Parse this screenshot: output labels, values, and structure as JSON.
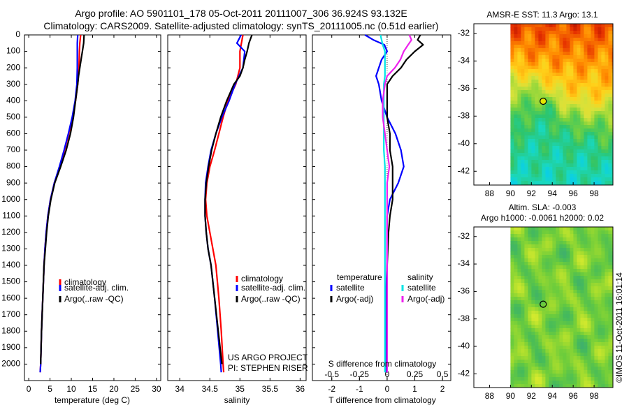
{
  "header": {
    "line1": "Argo profile: AO 5901101_178 05-Oct-2011 20111007_306 36.924S 93.132E",
    "line2": "Climatology: CARS2009. Satellite-adjusted climatology: synTS_20111005.nc (0.51d earlier)"
  },
  "colors": {
    "climatology": "#ff0000",
    "satellite": "#0000ff",
    "argo": "#000000",
    "salinity_satellite": "#00e5e5",
    "salinity_argo": "#ee22ee"
  },
  "chart_data": [
    {
      "id": "temperature",
      "type": "line",
      "xlabel": "temperature (deg C)",
      "ylabel": "",
      "xlim": [
        -1,
        31
      ],
      "ylim": [
        2100,
        0
      ],
      "x_ticks": [
        "0",
        "5",
        "10",
        "15",
        "20",
        "25",
        "30"
      ],
      "y_ticks": [
        "0",
        "100",
        "200",
        "300",
        "400",
        "500",
        "600",
        "700",
        "800",
        "900",
        "1000",
        "1100",
        "1200",
        "1300",
        "1400",
        "1500",
        "1600",
        "1700",
        "1800",
        "1900",
        "2000"
      ],
      "legend": [
        "climatology",
        "satellite-adj. clim.",
        "Argo(..raw -QC)"
      ],
      "series": [
        {
          "name": "climatology",
          "depth": [
            0,
            50,
            100,
            200,
            300,
            400,
            500,
            600,
            700,
            800,
            900,
            1000,
            1100,
            1200,
            1300,
            1400,
            1600,
            1800,
            2000,
            2050
          ],
          "values": [
            12.2,
            12.0,
            11.9,
            11.8,
            11.5,
            11.0,
            10.3,
            9.4,
            8.4,
            7.3,
            6.0,
            5.1,
            4.5,
            4.1,
            3.8,
            3.6,
            3.3,
            3.0,
            2.8,
            2.7
          ]
        },
        {
          "name": "satellite-adj. clim.",
          "depth": [
            0,
            50,
            100,
            200,
            300,
            400,
            500,
            600,
            700,
            800,
            900,
            1000,
            1100,
            1200,
            1300,
            1400,
            1600,
            1800,
            2000,
            2050
          ],
          "values": [
            11.5,
            11.4,
            11.4,
            11.4,
            11.3,
            10.9,
            10.2,
            9.3,
            8.3,
            7.2,
            6.0,
            5.1,
            4.5,
            4.1,
            3.8,
            3.6,
            3.3,
            3.0,
            2.8,
            2.7
          ]
        },
        {
          "name": "Argo(..raw -QC)",
          "depth": [
            0,
            50,
            100,
            150,
            200,
            250,
            300,
            400,
            500,
            600,
            700,
            800,
            900,
            1000,
            1100,
            1200,
            1300,
            1400,
            1600,
            1800,
            2000
          ],
          "values": [
            13.0,
            12.9,
            12.6,
            12.3,
            12.0,
            11.7,
            11.5,
            11.0,
            10.5,
            9.8,
            8.8,
            7.5,
            6.1,
            5.2,
            4.6,
            4.2,
            3.9,
            3.6,
            3.3,
            3.0,
            2.8
          ]
        }
      ]
    },
    {
      "id": "salinity",
      "type": "line",
      "xlabel": "salinity",
      "ylabel": "",
      "xlim": [
        33.8,
        36.1
      ],
      "ylim": [
        2100,
        0
      ],
      "x_ticks": [
        "34",
        "34.5",
        "35",
        "35.5",
        "36"
      ],
      "legend": [
        "climatology",
        "satellite-adj. clim.",
        "Argo(..raw -QC)"
      ],
      "annotations": [
        "US ARGO PROJECT",
        "PI: STEPHEN RISER"
      ],
      "series": [
        {
          "name": "climatology",
          "depth": [
            0,
            100,
            200,
            300,
            400,
            500,
            600,
            700,
            800,
            900,
            1000,
            1100,
            1200,
            1300,
            1400,
            1600,
            1800,
            2000,
            2050
          ],
          "values": [
            35.05,
            35.0,
            35.0,
            34.93,
            34.8,
            34.72,
            34.65,
            34.58,
            34.5,
            34.45,
            34.43,
            34.45,
            34.5,
            34.55,
            34.6,
            34.65,
            34.69,
            34.72,
            34.73
          ]
        },
        {
          "name": "satellite-adj. clim.",
          "depth": [
            0,
            50,
            100,
            200,
            300,
            400,
            500,
            600,
            700,
            800,
            900,
            1000,
            1100,
            1200,
            1300,
            1400,
            1600,
            1800,
            2000,
            2050
          ],
          "values": [
            35.02,
            34.95,
            35.08,
            35.05,
            34.92,
            34.82,
            34.7,
            34.6,
            34.52,
            34.47,
            34.43,
            34.42,
            34.42,
            34.44,
            34.47,
            34.52,
            34.58,
            34.63,
            34.68,
            34.69
          ]
        },
        {
          "name": "Argo(..raw -QC)",
          "depth": [
            0,
            50,
            100,
            150,
            200,
            250,
            300,
            400,
            500,
            600,
            700,
            800,
            900,
            1000,
            1100,
            1200,
            1300,
            1400,
            1600,
            1800,
            2000
          ],
          "values": [
            35.2,
            35.15,
            35.12,
            35.08,
            35.05,
            35.0,
            34.9,
            34.78,
            34.68,
            34.6,
            34.53,
            34.48,
            34.44,
            34.42,
            34.42,
            34.44,
            34.47,
            34.52,
            34.58,
            34.64,
            34.7
          ]
        }
      ]
    },
    {
      "id": "difference",
      "type": "line",
      "xlabel": "T difference from climatology",
      "xlabel_top": "S difference from climatology",
      "xlim": [
        -2.7,
        2.3
      ],
      "ylim": [
        2100,
        0
      ],
      "x_ticks": [
        "-2",
        "-1",
        "0",
        "1",
        "2"
      ],
      "x_ticks_top": [
        "-0.5",
        "-0.25",
        "0",
        "0.25",
        "0.5"
      ],
      "legend_title_left": "temperature",
      "legend_title_right": "salinity",
      "legend": [
        "satellite",
        "Argo(-adj)",
        "satellite",
        "Argo(-adj)"
      ],
      "series": [
        {
          "name": "T satellite",
          "depth": [
            0,
            30,
            60,
            100,
            150,
            200,
            250,
            300,
            400,
            500,
            600,
            700,
            800,
            900,
            1000,
            1100,
            1200,
            1400,
            1600,
            1800,
            2000,
            2050
          ],
          "values": [
            -0.8,
            -0.5,
            -0.1,
            0.0,
            -0.2,
            -0.3,
            -0.4,
            -0.3,
            -0.2,
            0.0,
            0.3,
            0.5,
            0.6,
            0.4,
            0.1,
            0.0,
            0.0,
            0.0,
            -0.05,
            -0.05,
            -0.05,
            -0.05
          ]
        },
        {
          "name": "T Argo(-adj)",
          "depth": [
            0,
            30,
            60,
            100,
            150,
            200,
            250,
            300,
            400,
            500,
            600,
            700,
            800,
            900,
            1000,
            1100,
            1200,
            1400,
            1600,
            1800,
            2000,
            2050
          ],
          "values": [
            1.2,
            1.1,
            1.3,
            1.0,
            0.7,
            0.5,
            0.2,
            0.0,
            0.0,
            0.0,
            0.1,
            0.1,
            0.2,
            0.2,
            0.2,
            0.1,
            0.05,
            0.0,
            0.0,
            0.0,
            0.0,
            0.0
          ]
        },
        {
          "name": "S satellite",
          "depth": [
            0,
            30,
            60,
            100,
            150,
            200,
            250,
            300,
            400,
            500,
            600,
            700,
            800,
            900,
            1000,
            1100,
            1200,
            1400,
            1600,
            1800,
            2000,
            2050
          ],
          "values": [
            -0.06,
            -0.05,
            -0.04,
            -0.02,
            -0.02,
            -0.02,
            -0.02,
            -0.03,
            -0.03,
            -0.03,
            -0.03,
            -0.03,
            -0.02,
            -0.02,
            -0.02,
            -0.02,
            -0.02,
            -0.02,
            -0.02,
            -0.02,
            -0.02,
            -0.02
          ]
        },
        {
          "name": "S Argo(-adj)",
          "depth": [
            0,
            30,
            60,
            100,
            150,
            200,
            250,
            300,
            400,
            500,
            600,
            700,
            800,
            900,
            1000,
            1100,
            1200,
            1400,
            1600,
            1800,
            2000,
            2050
          ],
          "values": [
            0.2,
            0.22,
            0.19,
            0.15,
            0.12,
            0.07,
            0.0,
            -0.02,
            -0.04,
            -0.04,
            -0.02,
            0.0,
            0.02,
            0.0,
            0.0,
            0.0,
            0.0,
            0.0,
            0.0,
            0.0,
            0.0,
            0.0
          ]
        }
      ]
    },
    {
      "id": "sst_map",
      "type": "heatmap",
      "title": "AMSR-E SST: 11.3 Argo: 13.1",
      "x_ticks": [
        "88",
        "90",
        "92",
        "94",
        "96",
        "98"
      ],
      "y_ticks": [
        "-32",
        "-34",
        "-36",
        "-38",
        "-40",
        "-42"
      ],
      "xlim": [
        86.5,
        99.8
      ],
      "ylim": [
        -43,
        -31.3
      ],
      "data_start_lon": 90,
      "argo_position": {
        "lon": 93.132,
        "lat": -36.924
      },
      "palette": [
        "#0a3cff",
        "#00c8ff",
        "#19d8c0",
        "#2ec46a",
        "#7ed33b",
        "#d8e23a",
        "#ffd21a",
        "#ff8a00",
        "#e63200",
        "#9c0000"
      ]
    },
    {
      "id": "sla_map",
      "type": "heatmap",
      "title": "Altim. SLA: -0.003",
      "subtitle": "Argo h1000: -0.0061 h2000: 0.02",
      "x_ticks": [
        "88",
        "90",
        "92",
        "94",
        "96",
        "98"
      ],
      "y_ticks": [
        "-32",
        "-34",
        "-36",
        "-38",
        "-40",
        "-42"
      ],
      "xlim": [
        86.5,
        99.8
      ],
      "ylim": [
        -43,
        -31.3
      ],
      "data_start_lon": 90,
      "argo_position": {
        "lon": 93.132,
        "lat": -36.924
      },
      "palette": [
        "#3aa77a",
        "#46bb5a",
        "#6ccc3c",
        "#a4dc2e",
        "#d6ea2e"
      ]
    }
  ],
  "footer": {
    "watermark": "©IMOS 11-Oct-2011 16:01:14"
  }
}
